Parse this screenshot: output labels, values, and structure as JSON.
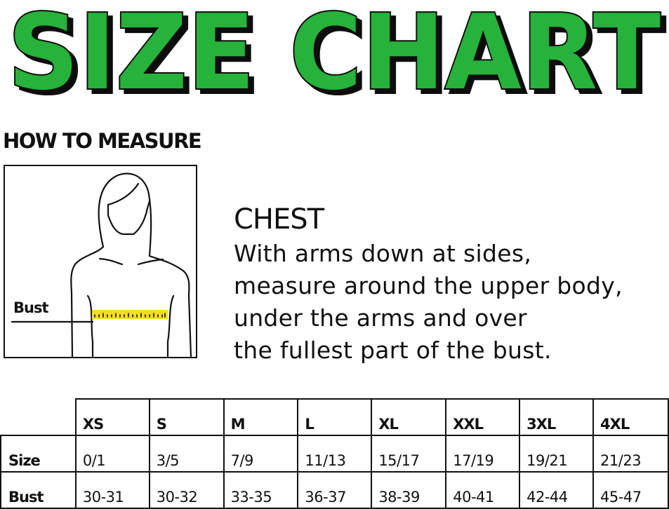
{
  "title": "SIZE CHART",
  "colors": {
    "title_fill": "#27b23a",
    "title_shadow": "#111111",
    "tape": "#f2e01a"
  },
  "how_to_measure": "HOW TO MEASURE",
  "figure": {
    "label": "Bust",
    "icon": "woman-silhouette-measuring-tape-illustration"
  },
  "chest": {
    "heading": "CHEST",
    "lines": [
      "With arms down at sides,",
      "measure around the upper body,",
      "under the arms and over",
      "the fullest part of the bust."
    ]
  },
  "table": {
    "columns": [
      "XS",
      "S",
      "M",
      "L",
      "XL",
      "XXL",
      "3XL",
      "4XL"
    ],
    "rows": [
      {
        "label": "Size",
        "values": [
          "0/1",
          "3/5",
          "7/9",
          "11/13",
          "15/17",
          "17/19",
          "19/21",
          "21/23"
        ]
      },
      {
        "label": "Bust",
        "values": [
          "30-31",
          "30-32",
          "33-35",
          "36-37",
          "38-39",
          "40-41",
          "42-44",
          "45-47"
        ]
      }
    ]
  }
}
